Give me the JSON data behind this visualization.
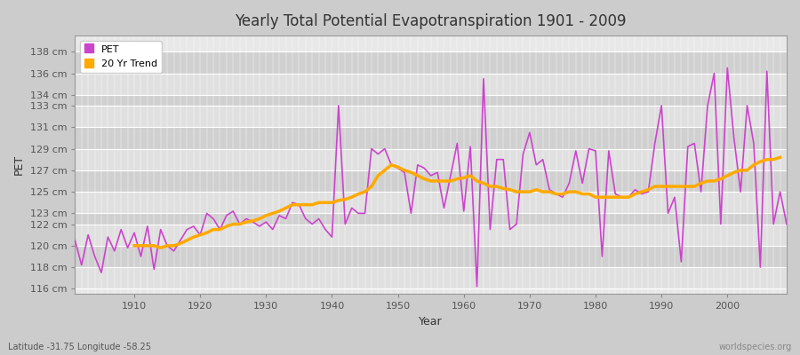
{
  "title": "Yearly Total Potential Evapotranspiration 1901 - 2009",
  "xlabel": "Year",
  "ylabel": "PET",
  "subtitle": "Latitude -31.75 Longitude -58.25",
  "watermark": "worldspecies.org",
  "pet_color": "#cc44cc",
  "trend_color": "#ffaa00",
  "fig_bg_color": "#cccccc",
  "plot_bg_color": "#e8e8e8",
  "band_color_light": "#e0e0e0",
  "band_color_dark": "#d0d0d0",
  "years": [
    1901,
    1902,
    1903,
    1904,
    1905,
    1906,
    1907,
    1908,
    1909,
    1910,
    1911,
    1912,
    1913,
    1914,
    1915,
    1916,
    1917,
    1918,
    1919,
    1920,
    1921,
    1922,
    1923,
    1924,
    1925,
    1926,
    1927,
    1928,
    1929,
    1930,
    1931,
    1932,
    1933,
    1934,
    1935,
    1936,
    1937,
    1938,
    1939,
    1940,
    1941,
    1942,
    1943,
    1944,
    1945,
    1946,
    1947,
    1948,
    1949,
    1950,
    1951,
    1952,
    1953,
    1954,
    1955,
    1956,
    1957,
    1958,
    1959,
    1960,
    1961,
    1962,
    1963,
    1964,
    1965,
    1966,
    1967,
    1968,
    1969,
    1970,
    1971,
    1972,
    1973,
    1974,
    1975,
    1976,
    1977,
    1978,
    1979,
    1980,
    1981,
    1982,
    1983,
    1984,
    1985,
    1986,
    1987,
    1988,
    1989,
    1990,
    1991,
    1992,
    1993,
    1994,
    1995,
    1996,
    1997,
    1998,
    1999,
    2000,
    2001,
    2002,
    2003,
    2004,
    2005,
    2006,
    2007,
    2008,
    2009
  ],
  "pet_values": [
    120.5,
    118.2,
    121.0,
    119.0,
    117.5,
    120.8,
    119.5,
    121.5,
    119.8,
    121.2,
    119.0,
    121.8,
    117.8,
    121.5,
    120.0,
    119.5,
    120.5,
    121.5,
    121.8,
    121.0,
    123.0,
    122.5,
    121.5,
    122.8,
    123.2,
    122.0,
    122.5,
    122.2,
    121.8,
    122.2,
    121.5,
    122.8,
    122.5,
    124.0,
    123.8,
    122.5,
    122.0,
    122.5,
    121.5,
    120.8,
    133.0,
    122.0,
    123.5,
    123.0,
    123.0,
    129.0,
    128.5,
    129.0,
    127.5,
    127.2,
    126.8,
    123.0,
    127.5,
    127.2,
    126.5,
    126.8,
    123.5,
    126.5,
    129.5,
    123.2,
    129.2,
    116.2,
    135.5,
    121.5,
    128.0,
    128.0,
    121.5,
    122.0,
    128.5,
    130.5,
    127.5,
    128.0,
    125.2,
    124.8,
    124.5,
    125.8,
    128.8,
    125.8,
    129.0,
    128.8,
    119.0,
    128.8,
    124.8,
    124.5,
    124.5,
    125.2,
    124.8,
    125.0,
    129.5,
    133.0,
    123.0,
    124.5,
    118.5,
    129.2,
    129.5,
    125.0,
    133.0,
    136.0,
    122.0,
    136.5,
    130.0,
    125.0,
    133.0,
    129.5,
    118.0,
    136.2,
    122.0,
    125.0,
    122.0
  ],
  "trend_values": [
    null,
    null,
    null,
    null,
    null,
    null,
    null,
    null,
    null,
    120.0,
    120.0,
    120.0,
    120.0,
    119.8,
    120.0,
    120.0,
    120.2,
    120.5,
    120.8,
    121.0,
    121.2,
    121.5,
    121.5,
    121.8,
    122.0,
    122.0,
    122.2,
    122.3,
    122.5,
    122.8,
    123.0,
    123.2,
    123.5,
    123.8,
    123.8,
    123.8,
    123.8,
    124.0,
    124.0,
    124.0,
    124.2,
    124.3,
    124.5,
    124.8,
    125.0,
    125.5,
    126.5,
    127.0,
    127.5,
    127.3,
    127.0,
    126.8,
    126.5,
    126.2,
    126.0,
    126.0,
    126.0,
    126.0,
    126.2,
    126.3,
    126.5,
    126.0,
    125.8,
    125.5,
    125.5,
    125.3,
    125.2,
    125.0,
    125.0,
    125.0,
    125.2,
    125.0,
    125.0,
    124.8,
    124.8,
    125.0,
    125.0,
    124.8,
    124.8,
    124.5,
    124.5,
    124.5,
    124.5,
    124.5,
    124.5,
    124.8,
    125.0,
    125.2,
    125.5,
    125.5,
    125.5,
    125.5,
    125.5,
    125.5,
    125.5,
    125.8,
    126.0,
    126.0,
    126.2,
    126.5,
    126.8,
    127.0,
    127.0,
    127.5,
    127.8,
    128.0,
    128.0,
    128.2
  ],
  "yticks": [
    116,
    118,
    120,
    122,
    123,
    125,
    127,
    129,
    131,
    133,
    134,
    136,
    138
  ],
  "xticks": [
    1910,
    1920,
    1930,
    1940,
    1950,
    1960,
    1970,
    1980,
    1990,
    2000
  ],
  "xlim": [
    1901,
    2009
  ],
  "ylim": [
    115.5,
    139.5
  ]
}
